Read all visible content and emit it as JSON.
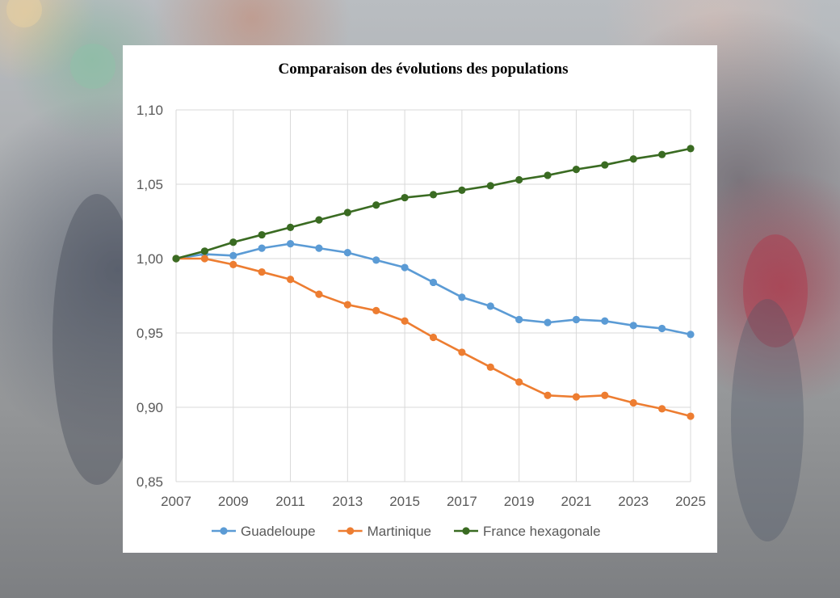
{
  "background": {
    "description_icon": "blurred-street-photo"
  },
  "chart_data": {
    "type": "line",
    "title": "Comparaison des évolutions des populations",
    "xlabel": "",
    "ylabel": "",
    "x": [
      2007,
      2008,
      2009,
      2010,
      2011,
      2012,
      2013,
      2014,
      2015,
      2016,
      2017,
      2018,
      2019,
      2020,
      2021,
      2022,
      2023,
      2024,
      2025
    ],
    "x_tick_labels": [
      "2007",
      "2009",
      "2011",
      "2013",
      "2015",
      "2017",
      "2019",
      "2021",
      "2023",
      "2025"
    ],
    "x_tick_values": [
      2007,
      2009,
      2011,
      2013,
      2015,
      2017,
      2019,
      2021,
      2023,
      2025
    ],
    "xlim": [
      2007,
      2025
    ],
    "ylim": [
      0.85,
      1.1
    ],
    "y_tick_values": [
      0.85,
      0.9,
      0.95,
      1.0,
      1.05,
      1.1
    ],
    "y_tick_labels": [
      "0,85",
      "0,90",
      "0,95",
      "1,00",
      "1,05",
      "1,10"
    ],
    "grid": true,
    "legend_position": "bottom",
    "series": [
      {
        "name": "Guadeloupe",
        "color": "#5b9bd5",
        "values": [
          1.0,
          1.003,
          1.002,
          1.007,
          1.01,
          1.007,
          1.004,
          0.999,
          0.994,
          0.984,
          0.974,
          0.968,
          0.959,
          0.957,
          0.959,
          0.958,
          0.955,
          0.953,
          0.949
        ]
      },
      {
        "name": "Martinique",
        "color": "#ed7d31",
        "values": [
          1.0,
          1.0,
          0.996,
          0.991,
          0.986,
          0.976,
          0.969,
          0.965,
          0.958,
          0.947,
          0.937,
          0.927,
          0.917,
          0.908,
          0.907,
          0.908,
          0.903,
          0.899,
          0.894
        ]
      },
      {
        "name": "France hexagonale",
        "color": "#3a6b22",
        "values": [
          1.0,
          1.005,
          1.011,
          1.016,
          1.021,
          1.026,
          1.031,
          1.036,
          1.041,
          1.043,
          1.046,
          1.049,
          1.053,
          1.056,
          1.06,
          1.063,
          1.067,
          1.07,
          1.074
        ]
      }
    ]
  }
}
